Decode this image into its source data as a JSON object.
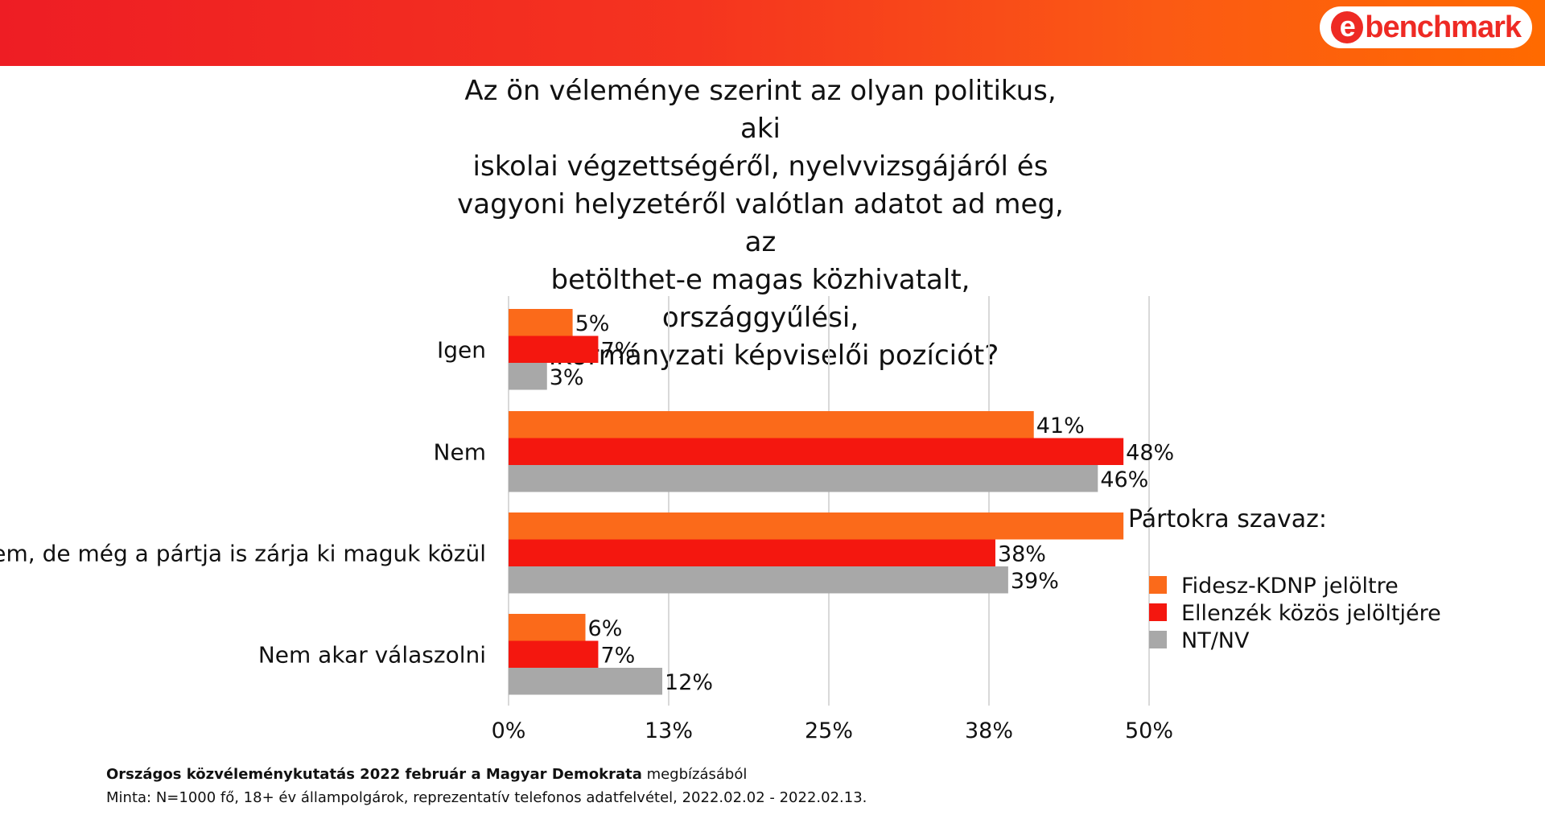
{
  "header": {
    "logo_text": "e-benchmark",
    "logo_e": "e",
    "logo_rest": "benchmark"
  },
  "colors": {
    "banner_start": "#ee1d24",
    "banner_end": "#ff6a00",
    "fidesz": "#fb6a1a",
    "ellenzek": "#f4170f",
    "ntnv": "#a8a8a8",
    "grid": "#d9d9d9"
  },
  "chart_data": {
    "type": "bar",
    "orientation": "horizontal",
    "title": "Az ön véleménye szerint az olyan politikus, aki\niskolai végzettségéről, nyelvvizsgájáról és\nvagyoni helyzetéről valótlan adatot ad meg, az\nbetölthet-e magas közhivatalt, országgyűlési,\nönkormányzati képviselői pozíciót?",
    "categories": [
      "Igen",
      "Nem",
      "Nem, de még a pártja is zárja ki maguk közül",
      "Nem akar válaszolni"
    ],
    "series": [
      {
        "name": "Fidesz-KDNP jelöltre",
        "values": [
          5,
          41,
          48,
          6
        ],
        "labels": [
          "5%",
          "41%",
          "",
          "6%"
        ]
      },
      {
        "name": "Ellenzék közös jelöltjére",
        "values": [
          7,
          48,
          38,
          7
        ],
        "labels": [
          "7%",
          "48%",
          "38%",
          "7%"
        ]
      },
      {
        "name": "NT/NV",
        "values": [
          3,
          46,
          39,
          12
        ],
        "labels": [
          "3%",
          "46%",
          "39%",
          "12%"
        ]
      }
    ],
    "xlim": [
      0,
      50
    ],
    "x_ticks": [
      0,
      12.5,
      25,
      37.5,
      50
    ],
    "x_tick_labels": [
      "0%",
      "13%",
      "25%",
      "38%",
      "50%"
    ],
    "grid": true,
    "legend_title": "Pártokra szavaz:",
    "legend_position": "right"
  },
  "footer": {
    "line1_bold": "Országos közvéleménykutatás 2022 február a Magyar Demokrata",
    "line1_rest": " megbízásából",
    "line2": "Minta: N=1000 fő,  18+ év állampolgárok, reprezentatív telefonos adatfelvétel,  2022.02.02 - 2022.02.13."
  }
}
